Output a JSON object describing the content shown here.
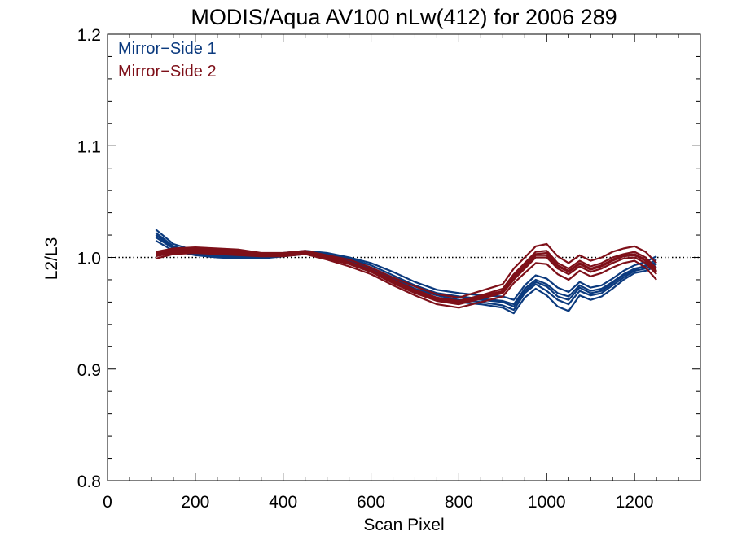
{
  "chart_data": {
    "type": "line",
    "title": "MODIS/Aqua AV100 nLw(412) for 2006 289",
    "xlabel": "Scan Pixel",
    "ylabel": "L2/L3",
    "xlim": [
      0,
      1350
    ],
    "ylim": [
      0.8,
      1.2
    ],
    "xticks": [
      0,
      200,
      400,
      600,
      800,
      1000,
      1200
    ],
    "yticks": [
      0.8,
      0.9,
      1.0,
      1.1,
      1.2
    ],
    "xtick_labels": [
      "0",
      "200",
      "400",
      "600",
      "800",
      "1000",
      "1200"
    ],
    "ytick_labels": [
      "0.8",
      "0.9",
      "1.0",
      "1.1",
      "1.2"
    ],
    "reference_line": 1.0,
    "legend_position": "top-left",
    "x": [
      110,
      150,
      200,
      250,
      300,
      350,
      400,
      450,
      500,
      550,
      600,
      650,
      700,
      750,
      800,
      850,
      900,
      925,
      950,
      975,
      1000,
      1025,
      1050,
      1075,
      1100,
      1125,
      1150,
      1175,
      1200,
      1225,
      1250
    ],
    "series": [
      {
        "name": "Mirror−Side 1",
        "color": "#0b3a7e",
        "lines": [
          [
            1.022,
            1.01,
            1.004,
            1.002,
            1.001,
            1.0,
            1.002,
            1.004,
            1.003,
            0.999,
            0.993,
            0.984,
            0.975,
            0.968,
            0.965,
            0.963,
            0.961,
            0.958,
            0.972,
            0.98,
            0.976,
            0.968,
            0.965,
            0.975,
            0.97,
            0.972,
            0.978,
            0.985,
            0.99,
            0.992,
            0.996
          ],
          [
            1.018,
            1.008,
            1.003,
            1.001,
            1.0,
            1.0,
            1.003,
            1.005,
            1.002,
            0.997,
            0.99,
            0.981,
            0.972,
            0.966,
            0.962,
            0.96,
            0.957,
            0.953,
            0.968,
            0.976,
            0.97,
            0.962,
            0.958,
            0.97,
            0.966,
            0.968,
            0.975,
            0.982,
            0.988,
            0.99,
            0.994
          ],
          [
            1.025,
            1.012,
            1.006,
            1.003,
            1.002,
            1.001,
            1.004,
            1.006,
            1.004,
            1.0,
            0.995,
            0.987,
            0.978,
            0.971,
            0.968,
            0.966,
            0.965,
            0.962,
            0.975,
            0.984,
            0.981,
            0.973,
            0.969,
            0.978,
            0.973,
            0.975,
            0.981,
            0.988,
            0.993,
            0.996,
            1.001
          ],
          [
            1.015,
            1.006,
            1.002,
            1.0,
            0.999,
            0.999,
            1.001,
            1.003,
            1.001,
            0.996,
            0.988,
            0.978,
            0.969,
            0.963,
            0.96,
            0.958,
            0.955,
            0.95,
            0.964,
            0.972,
            0.966,
            0.956,
            0.952,
            0.966,
            0.962,
            0.965,
            0.972,
            0.98,
            0.986,
            0.988,
            0.992
          ],
          [
            1.02,
            1.009,
            1.004,
            1.002,
            1.001,
            1.0,
            1.002,
            1.005,
            1.003,
            0.998,
            0.991,
            0.982,
            0.974,
            0.967,
            0.964,
            0.962,
            0.96,
            0.956,
            0.97,
            0.978,
            0.974,
            0.965,
            0.962,
            0.973,
            0.968,
            0.97,
            0.977,
            0.984,
            0.989,
            0.993,
            0.998
          ]
        ]
      },
      {
        "name": "Mirror−Side 2",
        "color": "#7e1019",
        "lines": [
          [
            1.003,
            1.006,
            1.007,
            1.006,
            1.005,
            1.003,
            1.003,
            1.005,
            1.001,
            0.996,
            0.989,
            0.98,
            0.971,
            0.964,
            0.961,
            0.966,
            0.972,
            0.985,
            0.995,
            1.005,
            1.006,
            0.995,
            0.99,
            0.997,
            0.992,
            0.995,
            1.0,
            1.003,
            1.005,
            1.0,
            0.99
          ],
          [
            1.001,
            1.004,
            1.005,
            1.004,
            1.003,
            1.002,
            1.002,
            1.004,
            0.999,
            0.994,
            0.987,
            0.977,
            0.968,
            0.961,
            0.958,
            0.963,
            0.968,
            0.98,
            0.99,
            1.0,
            1.0,
            0.99,
            0.985,
            0.992,
            0.987,
            0.99,
            0.995,
            0.999,
            1.0,
            0.995,
            0.985
          ],
          [
            1.005,
            1.008,
            1.009,
            1.008,
            1.007,
            1.004,
            1.004,
            1.006,
            1.002,
            0.998,
            0.991,
            0.982,
            0.974,
            0.967,
            0.964,
            0.97,
            0.976,
            0.99,
            1.0,
            1.01,
            1.012,
            1.001,
            0.995,
            1.002,
            0.997,
            1.0,
            1.005,
            1.008,
            1.01,
            1.005,
            0.995
          ],
          [
            0.999,
            1.003,
            1.004,
            1.003,
            1.002,
            1.001,
            1.001,
            1.003,
            0.998,
            0.992,
            0.985,
            0.975,
            0.966,
            0.958,
            0.955,
            0.96,
            0.965,
            0.977,
            0.986,
            0.995,
            0.994,
            0.985,
            0.98,
            0.988,
            0.983,
            0.986,
            0.991,
            0.995,
            0.997,
            0.991,
            0.98
          ],
          [
            1.004,
            1.007,
            1.008,
            1.007,
            1.006,
            1.003,
            1.003,
            1.005,
            1.0,
            0.995,
            0.988,
            0.979,
            0.97,
            0.963,
            0.96,
            0.965,
            0.97,
            0.983,
            0.993,
            1.003,
            1.004,
            0.993,
            0.988,
            0.995,
            0.99,
            0.993,
            0.998,
            1.002,
            1.003,
            0.998,
            0.988
          ],
          [
            1.002,
            1.005,
            1.006,
            1.005,
            1.004,
            1.002,
            1.002,
            1.004,
            1.0,
            0.995,
            0.988,
            0.978,
            0.969,
            0.962,
            0.959,
            0.964,
            0.969,
            0.982,
            0.992,
            1.002,
            1.002,
            0.992,
            0.987,
            0.994,
            0.989,
            0.992,
            0.997,
            1.001,
            1.002,
            0.997,
            0.987
          ]
        ]
      }
    ]
  }
}
